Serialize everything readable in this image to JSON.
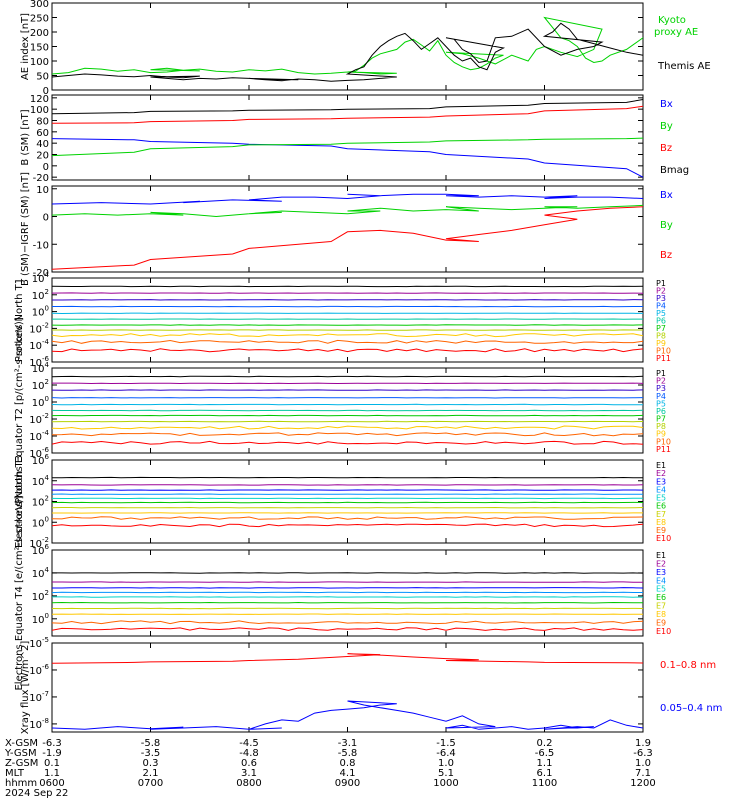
{
  "colors": {
    "p_channels": [
      "#000000",
      "#9b0096",
      "#3000c8",
      "#0058ff",
      "#00b4e6",
      "#00c8a0",
      "#00c800",
      "#b4d200",
      "#ffc800",
      "#ff6400",
      "#ff0000",
      "#d20000"
    ],
    "e_channels": [
      "#000000",
      "#9b0096",
      "#0000ff",
      "#0090ff",
      "#00d2c8",
      "#00c800",
      "#c8d200",
      "#ffc800",
      "#ff6400",
      "#ff0000",
      "#d20000"
    ]
  },
  "chart_data": [
    {
      "id": "ae",
      "type": "line",
      "ylabel": "AE index [nT]",
      "yticks": [
        "300",
        "250",
        "200",
        "150",
        "100",
        "50",
        "0"
      ],
      "ylim": [
        0,
        300
      ],
      "series": [
        {
          "name": "Kyoto proxy AE",
          "color": "#00d200",
          "x": [
            600,
            610,
            620,
            630,
            640,
            650,
            660,
            670,
            680,
            690,
            700,
            710,
            720,
            730,
            740,
            750,
            800,
            810,
            820,
            830,
            840,
            850,
            860,
            870,
            880,
            890,
            900,
            905,
            910,
            915,
            920,
            930,
            935,
            940,
            945,
            950,
            955,
            960,
            965,
            970,
            975,
            980,
            985,
            990,
            995,
            1000,
            1010,
            1020,
            1030,
            1040,
            1050,
            1055,
            1060,
            1070,
            1080,
            1090,
            1095,
            1100,
            1110,
            1115,
            1120,
            1125,
            1130,
            1135,
            1140,
            1150,
            1160,
            1170,
            1180,
            1190,
            1200
          ],
          "y": [
            55,
            60,
            75,
            72,
            65,
            70,
            60,
            62,
            68,
            66,
            70,
            75,
            68,
            72,
            65,
            62,
            70,
            66,
            72,
            60,
            55,
            58,
            62,
            60,
            55,
            58,
            62,
            65,
            85,
            110,
            125,
            140,
            165,
            175,
            155,
            135,
            170,
            120,
            95,
            80,
            70,
            75,
            90,
            110,
            120,
            130,
            125,
            110,
            90,
            120,
            100,
            140,
            150,
            130,
            115,
            140,
            210,
            250,
            180,
            170,
            150,
            110,
            95,
            100,
            120,
            140,
            180,
            210,
            160,
            130,
            160
          ]
        },
        {
          "name": "Themis AE",
          "color": "#000000",
          "x": [
            600,
            610,
            620,
            630,
            640,
            650,
            660,
            670,
            680,
            690,
            700,
            710,
            720,
            730,
            740,
            750,
            760,
            770,
            780,
            790,
            800,
            810,
            820,
            830,
            840,
            850,
            860,
            870,
            880,
            890,
            900,
            905,
            910,
            915,
            920,
            925,
            930,
            935,
            940,
            945,
            950,
            955,
            960,
            965,
            970,
            975,
            980,
            985,
            990,
            995,
            1000,
            1005,
            1010,
            1015,
            1020,
            1025,
            1030,
            1040,
            1050,
            1060,
            1070,
            1080,
            1090,
            1095,
            1100,
            1105,
            1110,
            1115,
            1120,
            1130,
            1140,
            1150,
            1160,
            1170,
            1180,
            1190,
            1200
          ],
          "y": [
            45,
            50,
            55,
            52,
            48,
            46,
            50,
            45,
            42,
            48,
            45,
            40,
            35,
            40,
            38,
            42,
            40,
            38,
            36,
            35,
            40,
            35,
            32,
            38,
            35,
            30,
            33,
            35,
            40,
            45,
            55,
            70,
            80,
            120,
            150,
            170,
            185,
            195,
            170,
            140,
            160,
            180,
            150,
            120,
            100,
            110,
            80,
            70,
            130,
            145,
            180,
            175,
            140,
            125,
            95,
            100,
            180,
            185,
            210,
            150,
            120,
            140,
            150,
            165,
            185,
            200,
            230,
            210,
            175,
            160,
            145,
            130,
            120,
            110,
            140,
            160,
            150
          ]
        }
      ],
      "legend": [
        "Kyoto proxy AE",
        "Themis AE"
      ]
    },
    {
      "id": "bsm",
      "type": "line",
      "ylabel": "B (SM) [nT]",
      "yticks": [
        "120",
        "100",
        "80",
        "60",
        "40",
        "20",
        "0",
        "-20"
      ],
      "ylim": [
        -25,
        125
      ],
      "series": [
        {
          "name": "Bx",
          "color": "#0000ff",
          "x": [
            600,
            650,
            700,
            750,
            800,
            850,
            900,
            950,
            1000,
            1050,
            1100,
            1150,
            1200
          ],
          "y": [
            48,
            46,
            43,
            40,
            38,
            35,
            30,
            25,
            20,
            12,
            5,
            -5,
            -20
          ]
        },
        {
          "name": "By",
          "color": "#00d200",
          "x": [
            600,
            650,
            700,
            750,
            800,
            850,
            900,
            950,
            1000,
            1050,
            1100,
            1150,
            1200
          ],
          "y": [
            18,
            24,
            30,
            34,
            37,
            38,
            40,
            42,
            44,
            46,
            47,
            48,
            49
          ]
        },
        {
          "name": "Bz",
          "color": "#ff0000",
          "x": [
            600,
            650,
            700,
            750,
            800,
            850,
            900,
            950,
            1000,
            1050,
            1100,
            1150,
            1200
          ],
          "y": [
            75,
            76,
            78,
            80,
            82,
            83,
            84,
            86,
            88,
            92,
            97,
            101,
            105
          ]
        },
        {
          "name": "Bmag",
          "color": "#000000",
          "x": [
            600,
            650,
            700,
            750,
            800,
            850,
            900,
            950,
            1000,
            1050,
            1100,
            1150,
            1200
          ],
          "y": [
            92,
            94,
            96,
            97,
            98,
            99,
            100,
            101,
            104,
            107,
            110,
            112,
            117
          ]
        }
      ],
      "legend": [
        "Bx",
        "By",
        "Bz",
        "Bmag"
      ]
    },
    {
      "id": "bdiff",
      "type": "line",
      "ylabel": "B (SM)−IGRF (SM) [nT]",
      "yticks": [
        "10",
        "0",
        "-10",
        "-20"
      ],
      "ylim": [
        -20,
        11
      ],
      "series": [
        {
          "name": "Bx",
          "color": "#0000ff",
          "x": [
            600,
            630,
            660,
            690,
            720,
            750,
            780,
            800,
            820,
            840,
            860,
            880,
            900,
            920,
            940,
            960,
            980,
            1000,
            1020,
            1040,
            1060,
            1080,
            1100,
            1120,
            1140,
            1160,
            1180,
            1200
          ],
          "y": [
            4.5,
            5,
            4.5,
            5.5,
            5,
            6,
            5.5,
            6,
            7,
            7,
            6.5,
            7.5,
            8,
            7.5,
            8,
            8,
            7.5,
            7.5,
            7,
            7.5,
            7,
            7.5,
            6.5,
            7,
            7,
            6.5,
            6.5,
            7
          ]
        },
        {
          "name": "By",
          "color": "#00d200",
          "x": [
            600,
            620,
            640,
            660,
            680,
            700,
            720,
            740,
            760,
            780,
            800,
            820,
            840,
            860,
            880,
            900,
            920,
            940,
            960,
            980,
            1000,
            1020,
            1040,
            1060,
            1080,
            1100,
            1120,
            1140,
            1160,
            1180,
            1200
          ],
          "y": [
            0.5,
            1,
            0.5,
            1,
            0.5,
            1.5,
            1,
            0,
            1,
            1.5,
            1,
            2,
            1.5,
            1,
            2,
            2,
            3,
            2,
            2.5,
            2,
            3.5,
            3,
            2.5,
            3,
            3.5,
            3.5,
            3,
            3.5,
            4,
            4,
            4
          ]
        },
        {
          "name": "Bz",
          "color": "#ff0000",
          "x": [
            600,
            650,
            700,
            750,
            800,
            850,
            900,
            920,
            940,
            960,
            980,
            1000,
            1020,
            1040,
            1060,
            1080,
            1100,
            1120,
            1140,
            1160,
            1180,
            1190,
            1200
          ],
          "y": [
            -19,
            -17.5,
            -15.5,
            -13.5,
            -11.5,
            -9,
            -5.5,
            -5,
            -6,
            -8.5,
            -9,
            -8,
            -6.5,
            -5,
            -3,
            -1,
            0.5,
            2,
            3,
            3.5,
            4,
            6,
            8
          ]
        }
      ],
      "legend": [
        "Bx",
        "By",
        "Bz"
      ]
    },
    {
      "id": "pn1",
      "type": "line",
      "log": true,
      "ylabel": "Protons North T1",
      "yticks": [
        "10^4",
        "10^2",
        "10^0",
        "10^-2",
        "10^-4",
        "10^-6"
      ],
      "ylim": [
        -6,
        4
      ],
      "series_levels": [
        3.0,
        2.2,
        1.4,
        0.6,
        -0.2,
        -0.9,
        -1.6,
        -2.2,
        -2.8,
        -3.6,
        -4.6
      ],
      "legend": [
        "P1",
        "P2",
        "P3",
        "P4",
        "P5",
        "P6",
        "P7",
        "P8",
        "P9",
        "P10",
        "P11"
      ]
    },
    {
      "id": "pe2",
      "type": "line",
      "log": true,
      "ylabel": "Protons Equator T2 [p/(cm²-s-sr-keV)]",
      "yticks": [
        "10^4",
        "10^2",
        "10^0",
        "10^-2",
        "10^-4",
        "10^-6"
      ],
      "ylim": [
        -6,
        4
      ],
      "series_levels": [
        3.0,
        2.2,
        1.4,
        0.5,
        -0.3,
        -1.0,
        -1.6,
        -2.3,
        -3.0,
        -3.8,
        -4.8
      ],
      "legend": [
        "P1",
        "P2",
        "P3",
        "P4",
        "P5",
        "P6",
        "P7",
        "P8",
        "P9",
        "P10",
        "P11"
      ]
    },
    {
      "id": "en3",
      "type": "line",
      "log": true,
      "ylabel": "Electrons North T3",
      "yticks": [
        "10^6",
        "10^4",
        "10^2",
        "10^0",
        "10^-2"
      ],
      "ylim": [
        -2,
        6
      ],
      "series_levels": [
        4.3,
        3.6,
        3.1,
        2.7,
        2.3,
        1.9,
        1.4,
        0.9,
        0.4,
        -0.3
      ],
      "legend": [
        "E1",
        "E2",
        "E3",
        "E4",
        "E5",
        "E6",
        "E7",
        "E8",
        "E9",
        "E10"
      ]
    },
    {
      "id": "ee4",
      "type": "line",
      "log": true,
      "ylabel": "Electrons Equator T4 [e/(cm²-s-sr-keV)]",
      "yticks": [
        "10^6",
        "10^4",
        "10^2",
        "10^0"
      ],
      "ylim": [
        -1.5,
        6
      ],
      "series_levels": [
        4.0,
        3.2,
        2.7,
        2.3,
        1.9,
        1.4,
        0.9,
        0.4,
        -0.3,
        -0.9
      ],
      "legend": [
        "E1",
        "E2",
        "E3",
        "E4",
        "E5",
        "E6",
        "E7",
        "E8",
        "E9",
        "E10"
      ]
    },
    {
      "id": "xray",
      "type": "line",
      "log": true,
      "ylabel": "Xray flux [W/m^2]",
      "yticks": [
        "10^-5",
        "10^-6",
        "10^-7",
        "10^-8"
      ],
      "ylim": [
        -8.3,
        -5
      ],
      "series": [
        {
          "name": "0.1–0.8 nm",
          "color": "#ff0000",
          "x": [
            600,
            650,
            700,
            750,
            800,
            830,
            860,
            880,
            900,
            920,
            940,
            960,
            980,
            1000,
            1050,
            1100,
            1150,
            1200
          ],
          "y": [
            -5.75,
            -5.72,
            -5.7,
            -5.68,
            -5.65,
            -5.6,
            -5.5,
            -5.43,
            -5.4,
            -5.45,
            -5.52,
            -5.58,
            -5.62,
            -5.65,
            -5.7,
            -5.72,
            -5.73,
            -5.74
          ]
        },
        {
          "name": "0.05–0.4 nm",
          "color": "#0000ff",
          "x": [
            600,
            620,
            640,
            660,
            680,
            700,
            720,
            740,
            760,
            780,
            800,
            810,
            820,
            830,
            840,
            850,
            860,
            870,
            880,
            890,
            900,
            910,
            920,
            930,
            940,
            950,
            960,
            970,
            980,
            990,
            1000,
            1010,
            1020,
            1030,
            1040,
            1050,
            1060,
            1070,
            1080,
            1090,
            1100,
            1110,
            1120,
            1130,
            1140,
            1150,
            1160,
            1170,
            1180,
            1190,
            1200
          ],
          "y": [
            -8.15,
            -8.2,
            -8.1,
            -8.18,
            -8.12,
            -8.2,
            -8.15,
            -8.1,
            -8.2,
            -8.15,
            -8.2,
            -8.0,
            -7.85,
            -7.9,
            -7.6,
            -7.5,
            -7.45,
            -7.4,
            -7.3,
            -7.25,
            -7.15,
            -7.3,
            -7.4,
            -7.5,
            -7.6,
            -7.75,
            -7.9,
            -7.7,
            -8.0,
            -8.1,
            -8.15,
            -8.05,
            -8.2,
            -8.15,
            -8.1,
            -8.2,
            -8.15,
            -8.05,
            -8.15,
            -8.1,
            -8.2,
            -8.15,
            -8.1,
            -8.15,
            -7.85,
            -8.05,
            -8.15,
            -8.05,
            -7.95,
            -8.1,
            -8.05
          ]
        }
      ],
      "legend": [
        "0.1–0.8 nm",
        "0.05–0.4 nm"
      ]
    }
  ],
  "legend_labels": {
    "ae": [
      "Kyoto",
      "proxy AE",
      "Themis AE"
    ],
    "bsm": [
      "Bx",
      "By",
      "Bz",
      "Bmag"
    ],
    "bdiff": [
      "Bx",
      "By",
      "Bz"
    ],
    "pn1": [
      "P1",
      "P2",
      "P3",
      "P4",
      "P5",
      "P6",
      "P7",
      "P8",
      "P9",
      "P10",
      "P11"
    ],
    "pe2": [
      "P1",
      "P2",
      "P3",
      "P4",
      "P5",
      "P6",
      "P7",
      "P8",
      "P9",
      "P10",
      "P11"
    ],
    "en3": [
      "E1",
      "E2",
      "E3",
      "E4",
      "E5",
      "E6",
      "E7",
      "E8",
      "E9",
      "E10"
    ],
    "ee4": [
      "E1",
      "E2",
      "E3",
      "E4",
      "E5",
      "E6",
      "E7",
      "E8",
      "E9",
      "E10"
    ],
    "xray": [
      "0.1–0.8 nm",
      "0.05–0.4 nm"
    ]
  },
  "axis_table": {
    "row_labels": [
      "X-GSM",
      "Y-GSM",
      "Z-GSM",
      "MLT",
      "hhmm"
    ],
    "date": "2024 Sep 22",
    "columns": [
      [
        "-6.3",
        "-1.9",
        "0.1",
        "1.1",
        "0600"
      ],
      [
        "-5.8",
        "-3.5",
        "0.3",
        "2.1",
        "0700"
      ],
      [
        "-4.5",
        "-4.8",
        "0.6",
        "3.1",
        "0800"
      ],
      [
        "-3.1",
        "-5.8",
        "0.8",
        "4.1",
        "0900"
      ],
      [
        "-1.5",
        "-6.4",
        "1.0",
        "5.1",
        "1000"
      ],
      [
        "0.2",
        "-6.5",
        "1.1",
        "6.1",
        "1100"
      ],
      [
        "1.9",
        "-6.3",
        "1.0",
        "7.1",
        "1200"
      ]
    ]
  }
}
